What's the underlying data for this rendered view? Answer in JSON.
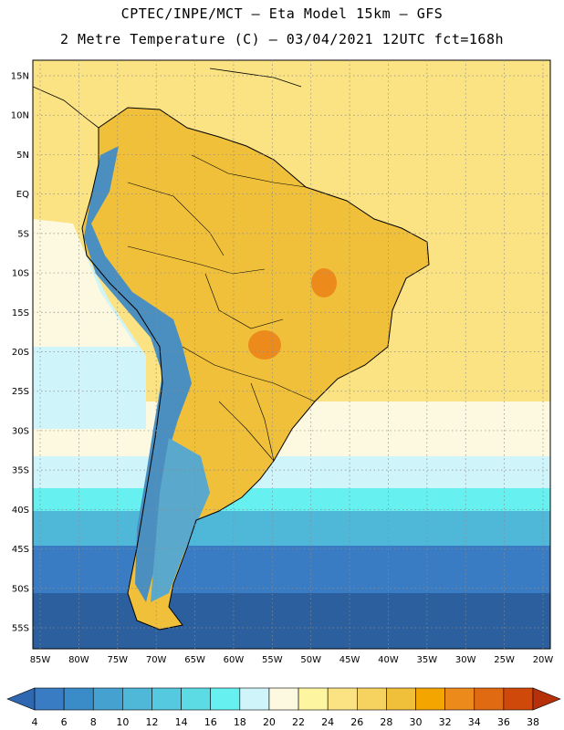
{
  "title_line1": "CPTEC/INPE/MCT –  Eta Model 15km – GFS",
  "title_line2": "2 Metre Temperature (C) – 03/04/2021 12UTC fct=168h",
  "lat_labels": [
    "15N",
    "10N",
    "5N",
    "EQ",
    "5S",
    "10S",
    "15S",
    "20S",
    "25S",
    "30S",
    "35S",
    "40S",
    "45S",
    "50S",
    "55S"
  ],
  "lat_values": [
    15,
    10,
    5,
    0,
    -5,
    -10,
    -15,
    -20,
    -25,
    -30,
    -35,
    -40,
    -45,
    -50,
    -55
  ],
  "lon_labels": [
    "85W",
    "80W",
    "75W",
    "70W",
    "65W",
    "60W",
    "55W",
    "50W",
    "45W",
    "40W",
    "35W",
    "30W",
    "25W",
    "20W"
  ],
  "lon_values": [
    -85,
    -80,
    -75,
    -70,
    -65,
    -60,
    -55,
    -50,
    -45,
    -40,
    -35,
    -30,
    -25,
    -20
  ],
  "colorbar": {
    "labels": [
      "4",
      "6",
      "8",
      "10",
      "12",
      "14",
      "16",
      "18",
      "20",
      "22",
      "24",
      "26",
      "28",
      "30",
      "32",
      "34",
      "36",
      "38"
    ],
    "colors": [
      "#3a7cc4",
      "#3a8cc8",
      "#45a2d0",
      "#4fb8d9",
      "#55c9df",
      "#5cdbe5",
      "#66f0f0",
      "#cff5fb",
      "#fdf8e0",
      "#fdf5a0",
      "#fbe383",
      "#f6d25e",
      "#f0c03a",
      "#f5a500",
      "#ec8a1c",
      "#e06a12",
      "#cf4a0a"
    ],
    "under_color": "#2f68b0",
    "over_color": "#b6310a"
  },
  "map_colors": {
    "ocean_deep": "#2c5f9e",
    "ocean_south": "#3a7cc4",
    "ocean_mid": "#4fb8d9",
    "ocean_cool": "#66f0f0",
    "ocean_pale": "#cff5fb",
    "ocean_cream": "#fdf8e0",
    "ocean_warm": "#fbe383",
    "land_warm": "#f0c03a",
    "land_hot": "#ec8a1c",
    "andes": "#4a8fc0",
    "patagonia": "#5aa8cc"
  }
}
